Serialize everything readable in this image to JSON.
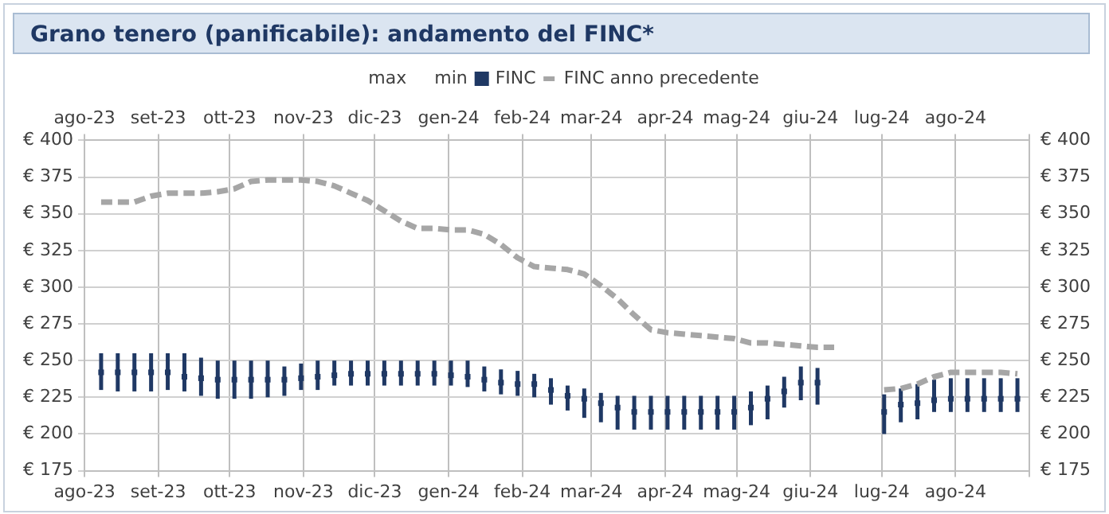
{
  "chart_data": {
    "type": "scatter",
    "title": "Grano tenero (panificabile): andamento del FINC*",
    "annotations": [
      "max",
      "min"
    ],
    "x": [
      "2023-08-08",
      "2023-08-15",
      "2023-08-22",
      "2023-08-29",
      "2023-09-05",
      "2023-09-12",
      "2023-09-19",
      "2023-09-26",
      "2023-10-03",
      "2023-10-10",
      "2023-10-17",
      "2023-10-24",
      "2023-10-31",
      "2023-11-07",
      "2023-11-14",
      "2023-11-21",
      "2023-11-28",
      "2023-12-05",
      "2023-12-12",
      "2023-12-19",
      "2023-12-26",
      "2024-01-02",
      "2024-01-09",
      "2024-01-16",
      "2024-01-23",
      "2024-01-30",
      "2024-02-06",
      "2024-02-13",
      "2024-02-20",
      "2024-02-27",
      "2024-03-05",
      "2024-03-12",
      "2024-03-19",
      "2024-03-26",
      "2024-04-02",
      "2024-04-09",
      "2024-04-16",
      "2024-04-23",
      "2024-04-30",
      "2024-05-07",
      "2024-05-14",
      "2024-05-21",
      "2024-05-28",
      "2024-06-04",
      "2024-06-11",
      "2024-06-18",
      "2024-06-25",
      "2024-07-02",
      "2024-07-09",
      "2024-07-16",
      "2024-07-23",
      "2024-07-30",
      "2024-08-06",
      "2024-08-13",
      "2024-08-20",
      "2024-08-27"
    ],
    "series": [
      {
        "name": "FINC",
        "color": "#1f3864",
        "marker": "square",
        "values": [
          242,
          242,
          242,
          242,
          242,
          239,
          238,
          237,
          237,
          237,
          237,
          237,
          238,
          239,
          240,
          241,
          241,
          241,
          241,
          241,
          241,
          240,
          239,
          237,
          235,
          234,
          234,
          230,
          226,
          224,
          221,
          218,
          215,
          215,
          215,
          215,
          215,
          215,
          215,
          218,
          224,
          229,
          235,
          235,
          null,
          null,
          null,
          215,
          220,
          221,
          223,
          224,
          224,
          224,
          224,
          224
        ],
        "errors": [
          [
            230,
            255
          ],
          [
            229,
            255
          ],
          [
            229,
            255
          ],
          [
            229,
            255
          ],
          [
            230,
            255
          ],
          [
            229,
            255
          ],
          [
            226,
            252
          ],
          [
            224,
            250
          ],
          [
            224,
            250
          ],
          [
            224,
            250
          ],
          [
            225,
            250
          ],
          [
            226,
            246
          ],
          [
            230,
            248
          ],
          [
            230,
            250
          ],
          [
            233,
            250
          ],
          [
            233,
            250
          ],
          [
            233,
            250
          ],
          [
            233,
            250
          ],
          [
            233,
            250
          ],
          [
            233,
            250
          ],
          [
            233,
            250
          ],
          [
            233,
            250
          ],
          [
            232,
            250
          ],
          [
            229,
            246
          ],
          [
            227,
            244
          ],
          [
            226,
            243
          ],
          [
            225,
            241
          ],
          [
            220,
            238
          ],
          [
            216,
            233
          ],
          [
            211,
            231
          ],
          [
            208,
            228
          ],
          [
            203,
            226
          ],
          [
            203,
            226
          ],
          [
            203,
            226
          ],
          [
            203,
            226
          ],
          [
            203,
            226
          ],
          [
            203,
            226
          ],
          [
            203,
            226
          ],
          [
            203,
            226
          ],
          [
            206,
            229
          ],
          [
            210,
            233
          ],
          [
            218,
            239
          ],
          [
            223,
            246
          ],
          [
            220,
            245
          ],
          null,
          null,
          null,
          [
            200,
            227
          ],
          [
            208,
            231
          ],
          [
            210,
            234
          ],
          [
            215,
            237
          ],
          [
            215,
            238
          ],
          [
            215,
            238
          ],
          [
            215,
            238
          ],
          [
            215,
            238
          ],
          [
            215,
            238
          ]
        ]
      },
      {
        "name": "FINC anno precedente",
        "type": "line",
        "color": "#a6a6a6",
        "marker": "none",
        "line_style": "dashed",
        "values": [
          358,
          358,
          358,
          362,
          364,
          364,
          364,
          365,
          367,
          372,
          373,
          373,
          373,
          372,
          369,
          364,
          359,
          352,
          345,
          340,
          340,
          339,
          339,
          336,
          329,
          320,
          314,
          313,
          312,
          309,
          301,
          292,
          281,
          271,
          269,
          268,
          267,
          266,
          265,
          262,
          262,
          261,
          260,
          259,
          259,
          null,
          null,
          230,
          231,
          234,
          239,
          242,
          242,
          242,
          242,
          241
        ]
      }
    ],
    "xlim": [
      "2023-08-01",
      "2024-09-01"
    ],
    "xticks": [
      {
        "value": "2023-08-01",
        "label": "ago-23"
      },
      {
        "value": "2023-09-01",
        "label": "set-23"
      },
      {
        "value": "2023-10-01",
        "label": "ott-23"
      },
      {
        "value": "2023-11-01",
        "label": "nov-23"
      },
      {
        "value": "2023-12-01",
        "label": "dic-23"
      },
      {
        "value": "2024-01-01",
        "label": "gen-24"
      },
      {
        "value": "2024-02-01",
        "label": "feb-24"
      },
      {
        "value": "2024-03-01",
        "label": "mar-24"
      },
      {
        "value": "2024-04-01",
        "label": "apr-24"
      },
      {
        "value": "2024-05-01",
        "label": "mag-24"
      },
      {
        "value": "2024-06-01",
        "label": "giu-24"
      },
      {
        "value": "2024-07-01",
        "label": "lug-24"
      },
      {
        "value": "2024-08-01",
        "label": "ago-24"
      },
      {
        "value": "2024-09-01",
        "label": null
      }
    ],
    "x2lim": [
      "2023-08-01",
      "2024-09-01"
    ],
    "x2ticks": [
      {
        "value": "2023-08-01",
        "label": "ago-23"
      },
      {
        "value": "2023-09-01",
        "label": "set-23"
      },
      {
        "value": "2023-10-01",
        "label": "ott-23"
      },
      {
        "value": "2023-11-01",
        "label": "nov-23"
      },
      {
        "value": "2023-12-01",
        "label": "dic-23"
      },
      {
        "value": "2024-01-01",
        "label": "gen-24"
      },
      {
        "value": "2024-02-01",
        "label": "feb-24"
      },
      {
        "value": "2024-03-01",
        "label": "mar-24"
      },
      {
        "value": "2024-04-01",
        "label": "apr-24"
      },
      {
        "value": "2024-05-01",
        "label": "mag-24"
      },
      {
        "value": "2024-06-01",
        "label": "giu-24"
      },
      {
        "value": "2024-07-01",
        "label": "lug-24"
      },
      {
        "value": "2024-08-01",
        "label": "ago-24"
      },
      {
        "value": "2024-09-01",
        "label": null
      }
    ],
    "ylim": [
      175,
      400
    ],
    "yticks": [
      {
        "value": 175,
        "label": "€ 175"
      },
      {
        "value": 200,
        "label": "€ 200"
      },
      {
        "value": 225,
        "label": "€ 225"
      },
      {
        "value": 250,
        "label": "€ 250"
      },
      {
        "value": 275,
        "label": "€ 275"
      },
      {
        "value": 300,
        "label": "€ 300"
      },
      {
        "value": 325,
        "label": "€ 325"
      },
      {
        "value": 350,
        "label": "€ 350"
      },
      {
        "value": 375,
        "label": "€ 375"
      },
      {
        "value": 400,
        "label": "€ 400"
      }
    ],
    "y2lim": [
      175,
      400
    ],
    "y2ticks": [
      {
        "value": 175,
        "label": "€ 175"
      },
      {
        "value": 200,
        "label": "€ 200"
      },
      {
        "value": 225,
        "label": "€ 225"
      },
      {
        "value": 250,
        "label": "€ 250"
      },
      {
        "value": 275,
        "label": "€ 275"
      },
      {
        "value": 300,
        "label": "€ 300"
      },
      {
        "value": 325,
        "label": "€ 325"
      },
      {
        "value": 350,
        "label": "€ 350"
      },
      {
        "value": 375,
        "label": "€ 375"
      },
      {
        "value": 400,
        "label": "€ 400"
      }
    ],
    "grid": true,
    "legend": "top"
  }
}
